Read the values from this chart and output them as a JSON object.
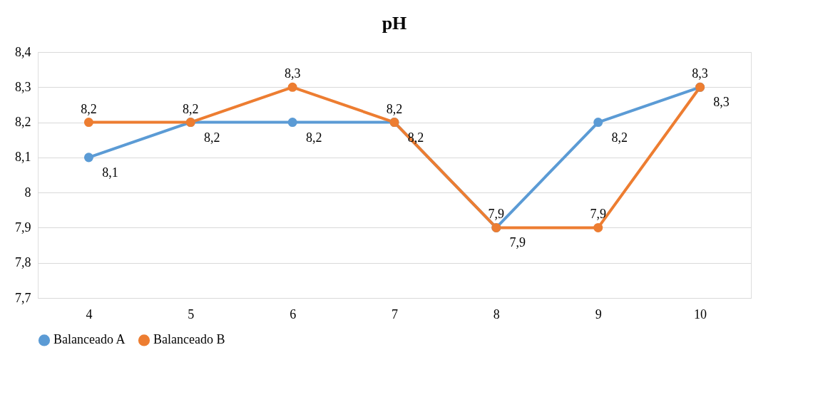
{
  "chart_data": {
    "type": "line",
    "title": "pH",
    "categories": [
      "4",
      "5",
      "6",
      "7",
      "8",
      "9",
      "10"
    ],
    "series": [
      {
        "name": "Balanceado A",
        "color": "#5b9bd5",
        "values": [
          8.1,
          8.2,
          8.2,
          8.2,
          7.9,
          8.2,
          8.3
        ],
        "value_labels": [
          "8,1",
          "8,2",
          "8,2",
          "8,2",
          "7,9",
          "8,2",
          "8,3"
        ]
      },
      {
        "name": "Balanceado B",
        "color": "#ed7d31",
        "values": [
          8.2,
          8.2,
          8.3,
          8.2,
          7.9,
          7.9,
          8.3
        ],
        "value_labels": [
          "8,2",
          "8,2",
          "8,3",
          "8,2",
          "7,9",
          "7,9",
          "8,3"
        ]
      }
    ],
    "ylim": [
      7.7,
      8.4
    ],
    "yticks": [
      {
        "value": 7.7,
        "label": "7,7"
      },
      {
        "value": 7.8,
        "label": "7,8"
      },
      {
        "value": 7.9,
        "label": "7,9"
      },
      8,
      {
        "value": 8.1,
        "label": "8,1"
      },
      {
        "value": 8.2,
        "label": "8,2"
      },
      {
        "value": 8.3,
        "label": "8,3"
      },
      {
        "value": 8.4,
        "label": "8,4"
      }
    ],
    "grid": "y",
    "legend": "bottom",
    "marker": "circle",
    "line_style": "solid"
  }
}
